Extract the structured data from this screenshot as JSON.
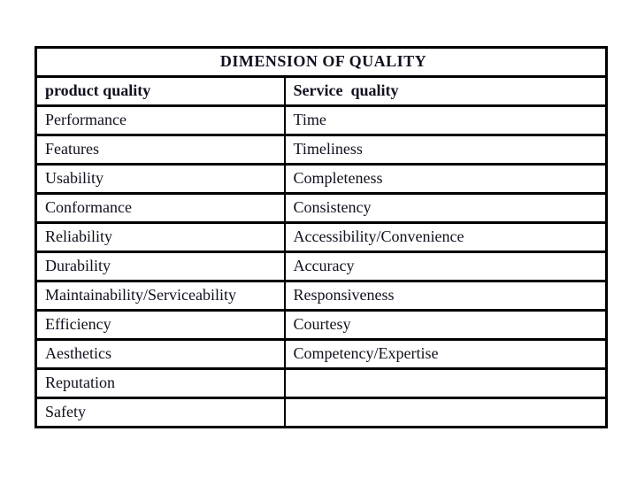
{
  "page": {
    "background": "#ffffff"
  },
  "table": {
    "title": "DIMENSION OF QUALITY",
    "columns": [
      {
        "label": "product quality"
      },
      {
        "label": "Service  quality"
      }
    ],
    "rows": [
      {
        "product": "Performance",
        "service": "Time"
      },
      {
        "product": "Features",
        "service": "Timeliness"
      },
      {
        "product": "Usability",
        "service": "Completeness"
      },
      {
        "product": "Conformance",
        "service": "Consistency"
      },
      {
        "product": "Reliability",
        "service": "Accessibility/Convenience"
      },
      {
        "product": "Durability",
        "service": "Accuracy"
      },
      {
        "product": "Maintainability/Serviceability",
        "service": "Responsiveness"
      },
      {
        "product": "Efficiency",
        "service": "Courtesy"
      },
      {
        "product": "Aesthetics",
        "service": "Competency/Expertise"
      },
      {
        "product": "Reputation",
        "service": ""
      },
      {
        "product": "Safety",
        "service": ""
      }
    ],
    "colors": {
      "text": "#10101e",
      "border": "#000000",
      "background": "#ffffff"
    }
  }
}
